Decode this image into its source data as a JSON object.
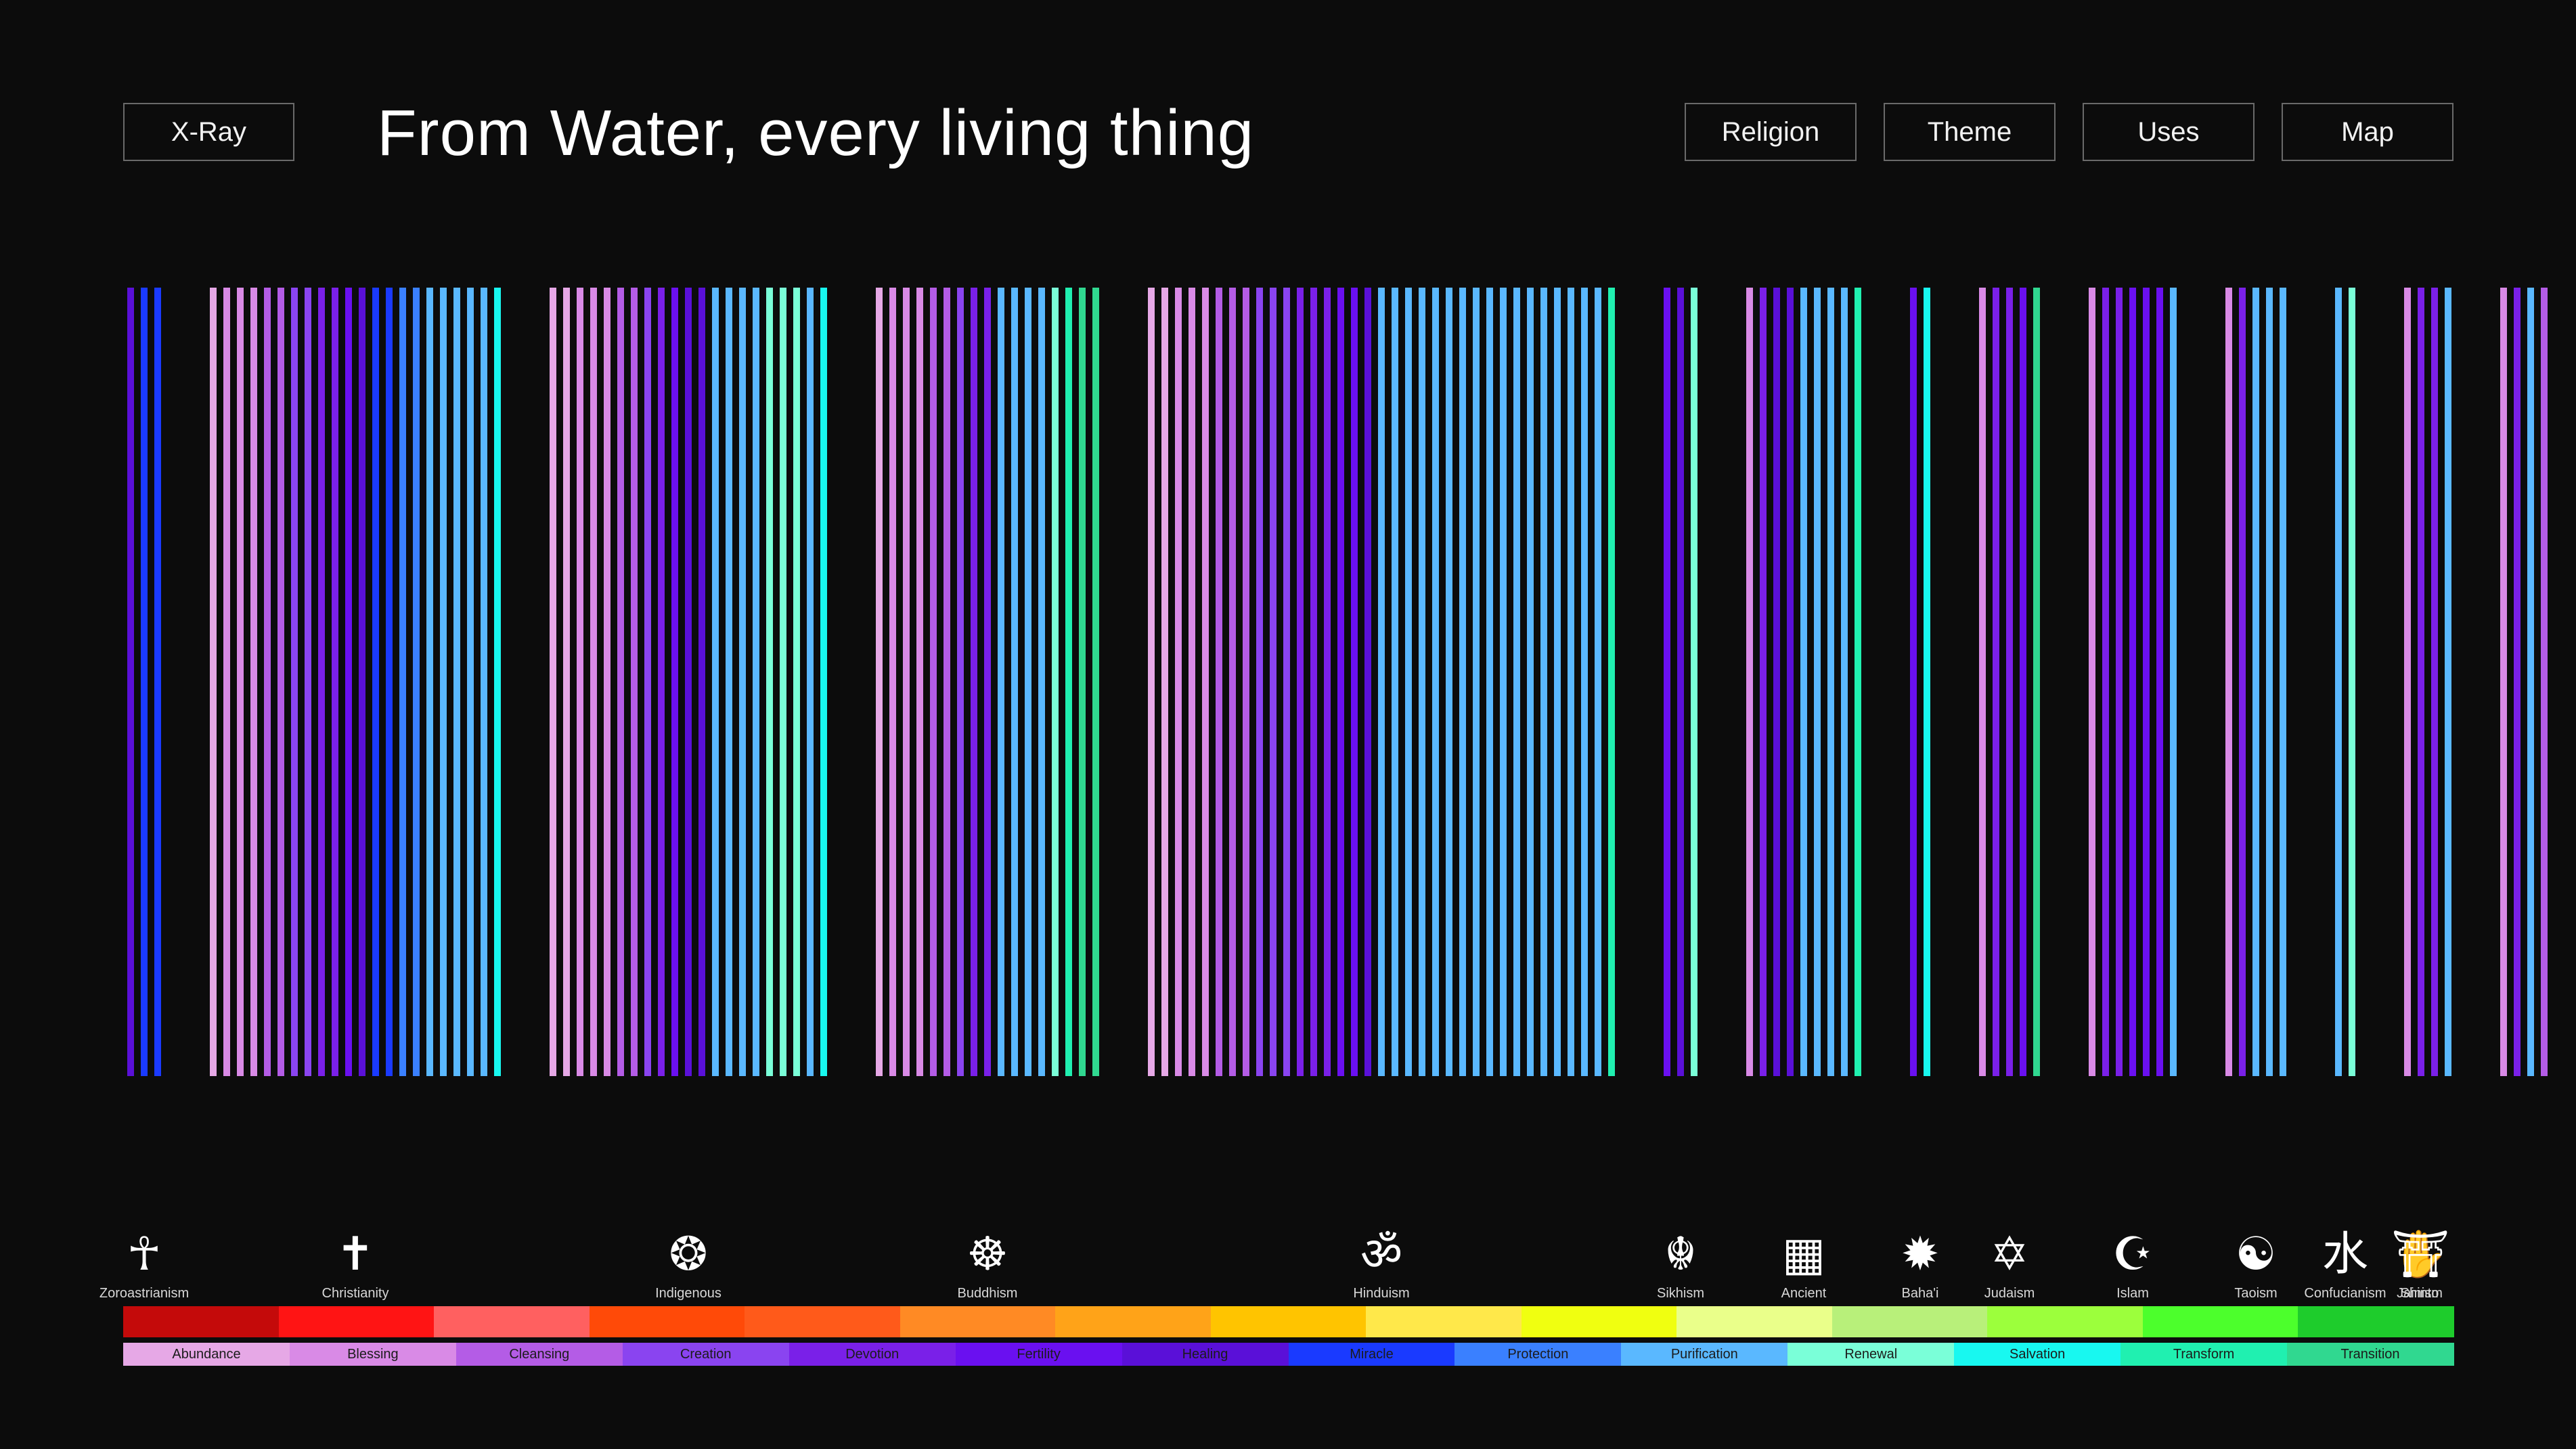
{
  "header": {
    "xray_label": "X-Ray",
    "title": "From Water, every living thing",
    "nav": [
      {
        "label": "Religion"
      },
      {
        "label": "Theme"
      },
      {
        "label": "Uses"
      },
      {
        "label": "Map"
      }
    ]
  },
  "colors": {
    "background": "#0c0c0c",
    "religion_band": [
      "#c40a0a",
      "#ff1414",
      "#ff6060",
      "#ff4a08",
      "#ff5a1a",
      "#ff8a24",
      "#ffa318",
      "#ffc400",
      "#ffe84a",
      "#f0ff10",
      "#eaff8a",
      "#b8f07a",
      "#9cff3c",
      "#4cff2c",
      "#1ecc2c"
    ],
    "theme_band": [
      "#e6a8e6",
      "#d98ae6",
      "#b45ce6",
      "#8a44f0",
      "#7a20e8",
      "#6a10f0",
      "#5a10d8",
      "#1a3aff",
      "#3a80ff",
      "#5ab8ff",
      "#7affd8",
      "#18f8f0",
      "#20f0b0",
      "#30d890"
    ]
  },
  "religions": [
    {
      "name": "Zoroastrianism",
      "icon": "faravahar-icon"
    },
    {
      "name": "Christianity",
      "icon": "cross-icon"
    },
    {
      "name": "Indigenous",
      "icon": "circle-ornament-icon"
    },
    {
      "name": "Buddhism",
      "icon": "dharma-wheel-icon"
    },
    {
      "name": "Hinduism",
      "icon": "om-icon"
    },
    {
      "name": "Sikhism",
      "icon": "khanda-icon"
    },
    {
      "name": "Ancient",
      "icon": "meander-icon"
    },
    {
      "name": "Baha'i",
      "icon": "nine-point-star-icon"
    },
    {
      "name": "Judaism",
      "icon": "star-of-david-icon"
    },
    {
      "name": "Islam",
      "icon": "crescent-star-icon"
    },
    {
      "name": "Taoism",
      "icon": "yin-yang-icon"
    },
    {
      "name": "Confucianism",
      "icon": "water-character-icon"
    },
    {
      "name": "Jainism",
      "icon": "hand-icon"
    },
    {
      "name": "Shinto",
      "icon": "torii-icon"
    }
  ],
  "themes": [
    {
      "name": "Abundance"
    },
    {
      "name": "Blessing"
    },
    {
      "name": "Cleansing"
    },
    {
      "name": "Creation"
    },
    {
      "name": "Devotion"
    },
    {
      "name": "Fertility"
    },
    {
      "name": "Healing"
    },
    {
      "name": "Miracle"
    },
    {
      "name": "Protection"
    },
    {
      "name": "Purification"
    },
    {
      "name": "Renewal"
    },
    {
      "name": "Salvation"
    },
    {
      "name": "Transform"
    },
    {
      "name": "Transition"
    }
  ],
  "chart_data": {
    "type": "bar",
    "groups": [
      {
        "religion": "Zoroastrianism",
        "themes": [
          "Healing",
          "Miracle",
          "Miracle"
        ]
      },
      {
        "religion": "Christianity",
        "themes": [
          "Abundance",
          "Blessing",
          "Blessing",
          "Blessing",
          "Cleansing",
          "Cleansing",
          "Creation",
          "Creation",
          "Devotion",
          "Devotion",
          "Fertility",
          "Healing",
          "Miracle",
          "Miracle",
          "Protection",
          "Protection",
          "Purification",
          "Purification",
          "Purification",
          "Purification",
          "Purification",
          "Salvation"
        ]
      },
      {
        "religion": "Indigenous",
        "themes": [
          "Abundance",
          "Abundance",
          "Blessing",
          "Blessing",
          "Blessing",
          "Cleansing",
          "Cleansing",
          "Creation",
          "Devotion",
          "Fertility",
          "Healing",
          "Healing",
          "Purification",
          "Purification",
          "Purification",
          "Purification",
          "Renewal",
          "Renewal",
          "Renewal",
          "Purification",
          "Salvation"
        ]
      },
      {
        "religion": "Buddhism",
        "themes": [
          "Abundance",
          "Blessing",
          "Blessing",
          "Blessing",
          "Cleansing",
          "Cleansing",
          "Creation",
          "Devotion",
          "Devotion",
          "Purification",
          "Purification",
          "Purification",
          "Purification",
          "Renewal",
          "Transform",
          "Transition",
          "Transition"
        ]
      },
      {
        "religion": "Hinduism",
        "themes": [
          "Abundance",
          "Abundance",
          "Blessing",
          "Blessing",
          "Blessing",
          "Cleansing",
          "Cleansing",
          "Cleansing",
          "Creation",
          "Creation",
          "Creation",
          "Devotion",
          "Devotion",
          "Devotion",
          "Fertility",
          "Fertility",
          "Healing",
          "Purification",
          "Purification",
          "Purification",
          "Purification",
          "Purification",
          "Purification",
          "Purification",
          "Purification",
          "Purification",
          "Purification",
          "Purification",
          "Purification",
          "Purification",
          "Purification",
          "Purification",
          "Purification",
          "Purification",
          "Transform"
        ]
      },
      {
        "religion": "Sikhism",
        "themes": [
          "Fertility",
          "Healing",
          "Renewal"
        ]
      },
      {
        "religion": "Ancient",
        "themes": [
          "Blessing",
          "Devotion",
          "Healing",
          "Healing",
          "Purification",
          "Purification",
          "Purification",
          "Purification",
          "Transform"
        ]
      },
      {
        "religion": "Baha'i",
        "themes": [
          "Fertility",
          "Salvation"
        ]
      },
      {
        "religion": "Judaism",
        "themes": [
          "Blessing",
          "Devotion",
          "Devotion",
          "Fertility",
          "Transition"
        ]
      },
      {
        "religion": "Islam",
        "themes": [
          "Blessing",
          "Devotion",
          "Devotion",
          "Fertility",
          "Fertility",
          "Fertility",
          "Purification"
        ]
      },
      {
        "religion": "Taoism",
        "themes": [
          "Blessing",
          "Devotion",
          "Purification",
          "Purification",
          "Purification"
        ]
      },
      {
        "religion": "Confucianism",
        "themes": [
          "Purification",
          "Renewal"
        ]
      },
      {
        "religion": "Jainism",
        "themes": [
          "Blessing",
          "Devotion",
          "Devotion",
          "Purification"
        ]
      },
      {
        "religion": "Shinto",
        "themes": [
          "Blessing",
          "Devotion",
          "Purification",
          "Cleansing"
        ]
      }
    ]
  }
}
